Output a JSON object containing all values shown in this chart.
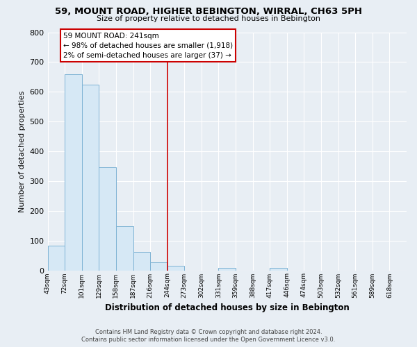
{
  "title": "59, MOUNT ROAD, HIGHER BEBINGTON, WIRRAL, CH63 5PH",
  "subtitle": "Size of property relative to detached houses in Bebington",
  "xlabel": "Distribution of detached houses by size in Bebington",
  "ylabel": "Number of detached properties",
  "bin_labels": [
    "43sqm",
    "72sqm",
    "101sqm",
    "129sqm",
    "158sqm",
    "187sqm",
    "216sqm",
    "244sqm",
    "273sqm",
    "302sqm",
    "331sqm",
    "359sqm",
    "388sqm",
    "417sqm",
    "446sqm",
    "474sqm",
    "503sqm",
    "532sqm",
    "561sqm",
    "589sqm",
    "618sqm"
  ],
  "bar_heights": [
    82,
    658,
    625,
    347,
    147,
    61,
    27,
    15,
    0,
    0,
    8,
    0,
    0,
    8,
    0,
    0,
    0,
    0,
    0,
    0,
    0
  ],
  "bar_color": "#d6e8f5",
  "bar_edge_color": "#7eb3d4",
  "property_line_x": 7,
  "property_line_label": "59 MOUNT ROAD: 241sqm",
  "annotation_line1": "← 98% of detached houses are smaller (1,918)",
  "annotation_line2": "2% of semi-detached houses are larger (37) →",
  "annotation_box_color": "#ffffff",
  "annotation_box_edge_color": "#cc0000",
  "property_line_color": "#cc0000",
  "ylim": [
    0,
    800
  ],
  "yticks": [
    0,
    100,
    200,
    300,
    400,
    500,
    600,
    700,
    800
  ],
  "background_color": "#e8eef4",
  "grid_color": "#ffffff",
  "footer_line1": "Contains HM Land Registry data © Crown copyright and database right 2024.",
  "footer_line2": "Contains public sector information licensed under the Open Government Licence v3.0."
}
